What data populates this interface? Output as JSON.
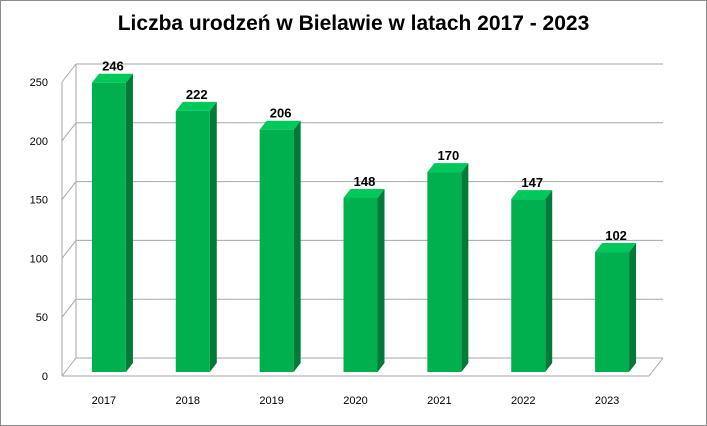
{
  "chart_data": {
    "type": "bar",
    "title": "Liczba urodzeń w Bielawie w latach 2017 - 2023",
    "categories": [
      "2017",
      "2018",
      "2019",
      "2020",
      "2021",
      "2022",
      "2023"
    ],
    "values": [
      246,
      222,
      206,
      148,
      170,
      147,
      102
    ],
    "xlabel": "",
    "ylabel": "",
    "ylim": [
      0,
      250
    ],
    "yticks": [
      0,
      50,
      100,
      150,
      200,
      250
    ],
    "grid": true,
    "legend": "none",
    "style": "3d-columns",
    "colors": {
      "bar_front": "#00b04f",
      "bar_top": "#00c85a",
      "bar_side": "#007a38",
      "grid": "#a6a6a6"
    }
  }
}
